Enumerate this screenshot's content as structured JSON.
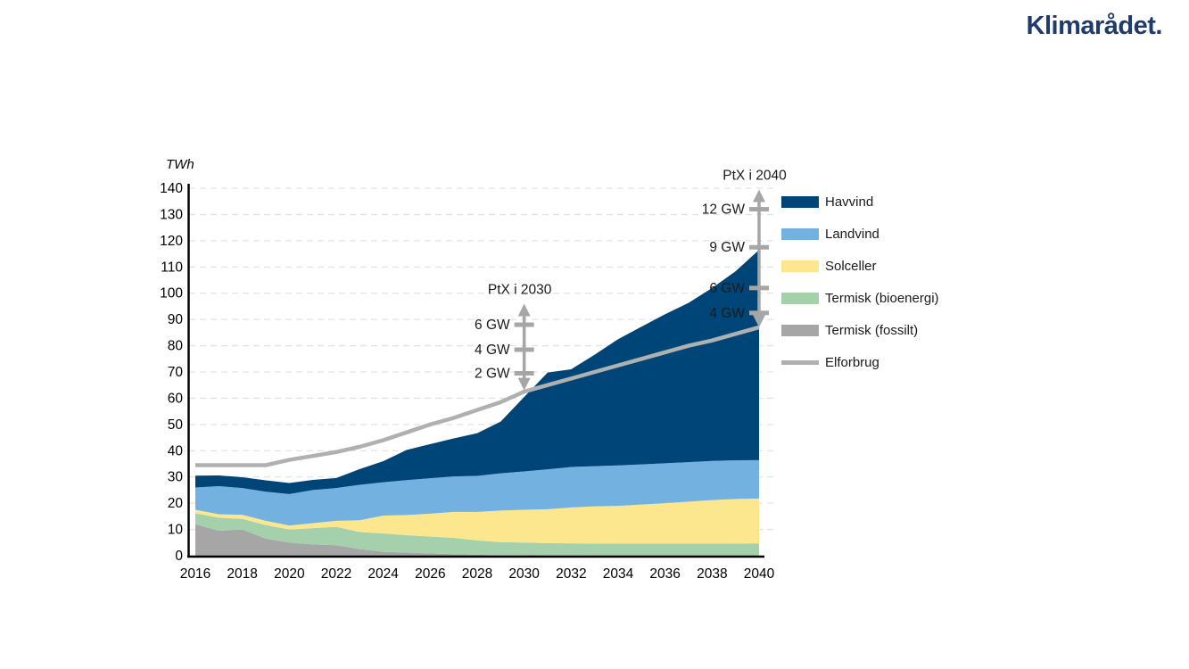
{
  "header": {
    "logo_text": "Klimarådet."
  },
  "chart_data": {
    "type": "area",
    "subtype": "stacked-area-with-line",
    "unit_label": "TWh",
    "ylim": [
      0,
      140
    ],
    "yticks": [
      0,
      10,
      20,
      30,
      40,
      50,
      60,
      70,
      80,
      90,
      100,
      110,
      120,
      130,
      140
    ],
    "xticks": [
      2016,
      2018,
      2020,
      2022,
      2024,
      2026,
      2028,
      2030,
      2032,
      2034,
      2036,
      2038,
      2040
    ],
    "grid": "horizontal-dashed",
    "legend_position": "right",
    "years": [
      2016,
      2017,
      2018,
      2019,
      2020,
      2021,
      2022,
      2023,
      2024,
      2025,
      2026,
      2027,
      2028,
      2029,
      2030,
      2031,
      2032,
      2033,
      2034,
      2035,
      2036,
      2037,
      2038,
      2039,
      2040
    ],
    "series": [
      {
        "name": "Havvind",
        "color": "#004577",
        "type": "area",
        "values": [
          4.5,
          4.1,
          4.1,
          4.3,
          4.2,
          3.9,
          3.8,
          6,
          8,
          11.5,
          13,
          14.5,
          16.3,
          19.7,
          28.4,
          36.9,
          37.2,
          42.5,
          48.1,
          52.5,
          56.8,
          60.7,
          65.9,
          72,
          80.1
        ]
      },
      {
        "name": "Landvind",
        "color": "#72B1E0",
        "type": "area",
        "values": [
          8.5,
          10.7,
          10.2,
          11.1,
          12,
          12.6,
          12.5,
          13.5,
          12.7,
          13.3,
          13.5,
          13.5,
          13.7,
          14.2,
          14.6,
          15.2,
          15.4,
          15.3,
          15.4,
          15.3,
          15.2,
          15.05,
          14.9,
          14.75,
          14.6
        ]
      },
      {
        "name": "Solceller",
        "color": "#FCE78E",
        "type": "area",
        "values": [
          1.3,
          1.3,
          1.6,
          1.6,
          1.5,
          1.9,
          2.3,
          4.5,
          6.8,
          7.7,
          8.7,
          9.9,
          10.9,
          12,
          12.5,
          12.9,
          13.7,
          14.2,
          14.4,
          14.9,
          15.4,
          16,
          16.6,
          17,
          17.1
        ]
      },
      {
        "name": "Termisk (bioenergi)",
        "color": "#A5D0AC",
        "type": "area",
        "values": [
          4.2,
          5,
          4,
          5.2,
          5,
          6.2,
          7,
          6.5,
          7,
          6.6,
          6.4,
          6.2,
          5.4,
          5,
          4.8,
          4.7,
          4.6,
          4.6,
          4.6,
          4.6,
          4.6,
          4.6,
          4.6,
          4.6,
          4.7
        ]
      },
      {
        "name": "Termisk (fossilt)",
        "color": "#A6A6A6",
        "type": "area",
        "values": [
          12,
          9.5,
          10,
          6.5,
          5,
          4.3,
          4,
          2.5,
          1.5,
          1.2,
          0.9,
          0.6,
          0.4,
          0.2,
          0.2,
          0.1,
          0.1,
          0,
          0,
          0,
          0,
          0,
          0,
          0,
          0
        ]
      },
      {
        "name": "Elforbrug",
        "color": "#AFB1B1",
        "type": "line",
        "values": [
          34.5,
          34.5,
          34.5,
          34.5,
          36.5,
          38,
          39.5,
          41.5,
          44,
          47,
          50,
          52.5,
          55.5,
          58.5,
          62.5,
          65,
          67.5,
          70,
          72.5,
          75,
          77.5,
          80,
          82,
          84.5,
          87
        ]
      }
    ],
    "stack_order_bottom_to_top": [
      "Termisk (fossilt)",
      "Termisk (bioenergi)",
      "Solceller",
      "Landvind",
      "Havvind"
    ],
    "annotations": [
      {
        "label": "PtX i 2030",
        "x_year": 2030,
        "arrow_color": "#A6A6A6",
        "arrow_top_twh": 96,
        "arrow_bottom_twh": 63,
        "ticks": [
          {
            "label": "6 GW",
            "twh": 88
          },
          {
            "label": "4 GW",
            "twh": 78.5
          },
          {
            "label": "2 GW",
            "twh": 69.5
          }
        ]
      },
      {
        "label": "PtX i 2040",
        "x_year": 2040,
        "arrow_color": "#A6A6A6",
        "arrow_top_twh": 139.5,
        "arrow_bottom_twh": 87,
        "ticks": [
          {
            "label": "12 GW",
            "twh": 132
          },
          {
            "label": "9 GW",
            "twh": 117.5
          },
          {
            "label": "6 GW",
            "twh": 102
          },
          {
            "label": "4 GW",
            "twh": 92.5
          }
        ]
      }
    ]
  }
}
